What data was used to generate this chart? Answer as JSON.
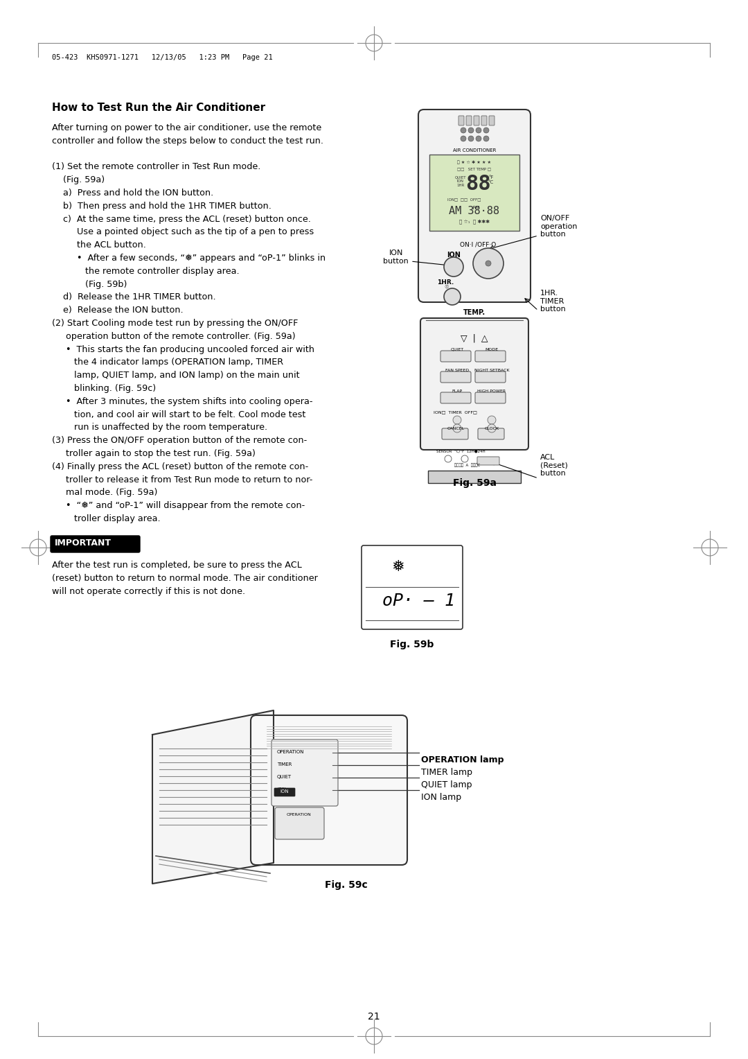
{
  "bg_color": "#ffffff",
  "header_text": "05-423  KHS0971-1271   12/13/05   1:23 PM   Page 21",
  "title": "How to Test Run the Air Conditioner",
  "page_number": "21",
  "body_lines": [
    [
      "After turning on power to the air conditioner, use the remote",
      false
    ],
    [
      "controller and follow the steps below to conduct the test run.",
      false
    ],
    [
      "",
      false
    ],
    [
      "(1) Set the remote controller in Test Run mode.",
      false
    ],
    [
      "    (Fig. 59a)",
      false
    ],
    [
      "    a)  Press and hold the ION button.",
      false
    ],
    [
      "    b)  Then press and hold the 1HR TIMER button.",
      false
    ],
    [
      "    c)  At the same time, press the ACL (reset) button once.",
      false
    ],
    [
      "         Use a pointed object such as the tip of a pen to press",
      false
    ],
    [
      "         the ACL button.",
      false
    ],
    [
      "         •  After a few seconds, “❅” appears and “oP-1” blinks in",
      false
    ],
    [
      "            the remote controller display area.",
      false
    ],
    [
      "            (Fig. 59b)",
      false
    ],
    [
      "    d)  Release the 1HR TIMER button.",
      false
    ],
    [
      "    e)  Release the ION button.",
      false
    ],
    [
      "(2) Start Cooling mode test run by pressing the ON/OFF",
      false
    ],
    [
      "     operation button of the remote controller. (Fig. 59a)",
      false
    ],
    [
      "     •  This starts the fan producing uncooled forced air with",
      false
    ],
    [
      "        the 4 indicator lamps (OPERATION lamp, TIMER",
      false
    ],
    [
      "        lamp, QUIET lamp, and ION lamp) on the main unit",
      false
    ],
    [
      "        blinking. (Fig. 59c)",
      false
    ],
    [
      "     •  After 3 minutes, the system shifts into cooling opera-",
      false
    ],
    [
      "        tion, and cool air will start to be felt. Cool mode test",
      false
    ],
    [
      "        run is unaffected by the room temperature.",
      false
    ],
    [
      "(3) Press the ON/OFF operation button of the remote con-",
      false
    ],
    [
      "     troller again to stop the test run. (Fig. 59a)",
      false
    ],
    [
      "(4) Finally press the ACL (reset) button of the remote con-",
      false
    ],
    [
      "     troller to release it from Test Run mode to return to nor-",
      false
    ],
    [
      "     mal mode. (Fig. 59a)",
      false
    ],
    [
      "     •  “❅” and “oP-1” will disappear from the remote con-",
      false
    ],
    [
      "        troller display area.",
      false
    ]
  ],
  "important_label": "IMPORTANT",
  "important_text": [
    "After the test run is completed, be sure to press the ACL",
    "(reset) button to return to normal mode. The air conditioner",
    "will not operate correctly if this is not done."
  ],
  "fig59a_label": "Fig. 59a",
  "fig59b_label": "Fig. 59b",
  "fig59c_label": "Fig. 59c",
  "label_on_off": "ON/OFF\noperation\nbutton",
  "label_1hr": "1HR.\nTIMER\nbutton",
  "label_ion_button": "ION\nbutton",
  "label_acl": "ACL\n(Reset)\nbutton",
  "label_operation": "OPERATION lamp",
  "label_timer": "TIMER lamp",
  "label_quiet": "QUIET lamp",
  "label_ion": "ION lamp"
}
